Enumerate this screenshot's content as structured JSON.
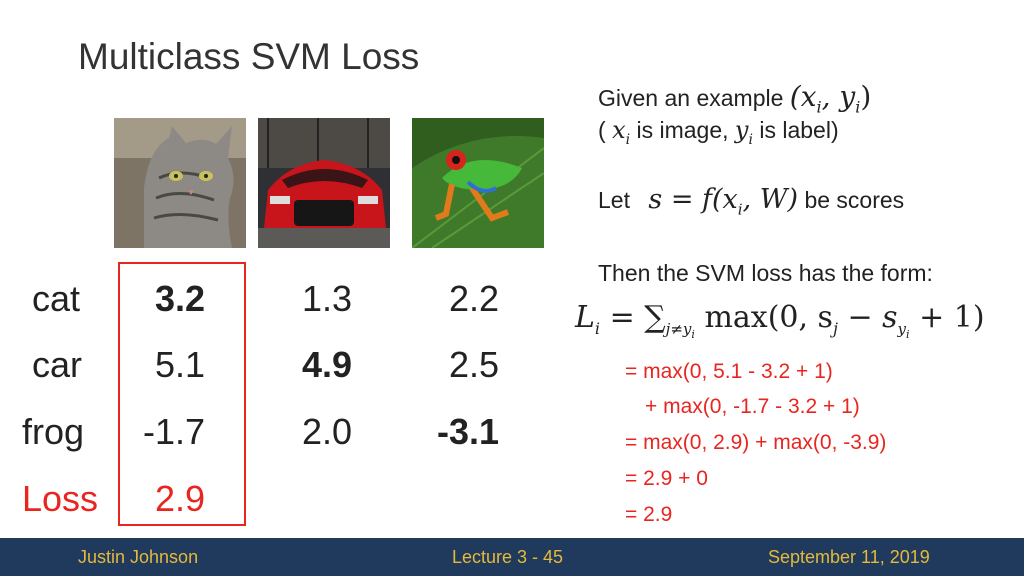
{
  "title": "Multiclass SVM Loss",
  "labels": {
    "cat": "cat",
    "car": "car",
    "frog": "frog",
    "loss": "Loss"
  },
  "scores": {
    "col1": {
      "cat": "3.2",
      "car": "5.1",
      "frog": "-1.7",
      "loss": "2.9"
    },
    "col2": {
      "cat": "1.3",
      "car": "4.9",
      "frog": "2.0"
    },
    "col3": {
      "cat": "2.2",
      "car": "2.5",
      "frog": "-3.1"
    }
  },
  "right": {
    "given": "Given an example",
    "is_image": "is image,",
    "is_label": "is label)",
    "open_paren": "(",
    "let": "Let",
    "be_scores": "be scores",
    "then": "Then the SVM loss has the form:",
    "xy_pair": "(x",
    "math_comma": ", y",
    "math_close": ")",
    "x": "x",
    "y": "y",
    "i": "i",
    "s_eq": "s = f(x",
    "w": ", W)",
    "L": "L",
    "eq_sum": " = ∑",
    "sub_j": "j≠y",
    "max": " max(0, s",
    "j": "j",
    "minus": " − s",
    "y_sub": "y",
    "plus1": " + 1)"
  },
  "derivation": [
    "= max(0, 5.1 - 3.2 + 1)",
    "+ max(0, -1.7 - 3.2 + 1)",
    "= max(0, 2.9) + max(0, -3.9)",
    "= 2.9 + 0",
    "= 2.9"
  ],
  "footer": {
    "left": "Justin Johnson",
    "center": "Lecture 3 - 45",
    "right": "September 11, 2019"
  },
  "colors": {
    "accent": "#e8251f",
    "footer_bg": "#1f3a5c",
    "footer_text": "#e4b93c"
  }
}
